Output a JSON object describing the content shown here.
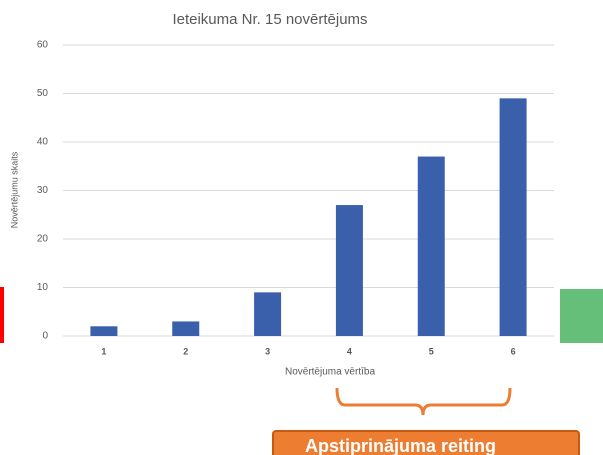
{
  "chart_data": {
    "type": "bar",
    "title": "Ieteikuma Nr. 15 novērtējums",
    "x_label": "Novērtējuma vērtība",
    "y_label": "Novērtējumu skaits",
    "categories": [
      "1",
      "2",
      "3",
      "4",
      "5",
      "6"
    ],
    "values": [
      2,
      3,
      9,
      27,
      37,
      49
    ],
    "color": "#3a5fab",
    "ylim": [
      0,
      60
    ],
    "yticks": [
      0,
      10,
      20,
      30,
      40,
      50,
      60
    ],
    "grid": true
  },
  "annotation": {
    "label": "Apstiprinājuma reiting"
  }
}
